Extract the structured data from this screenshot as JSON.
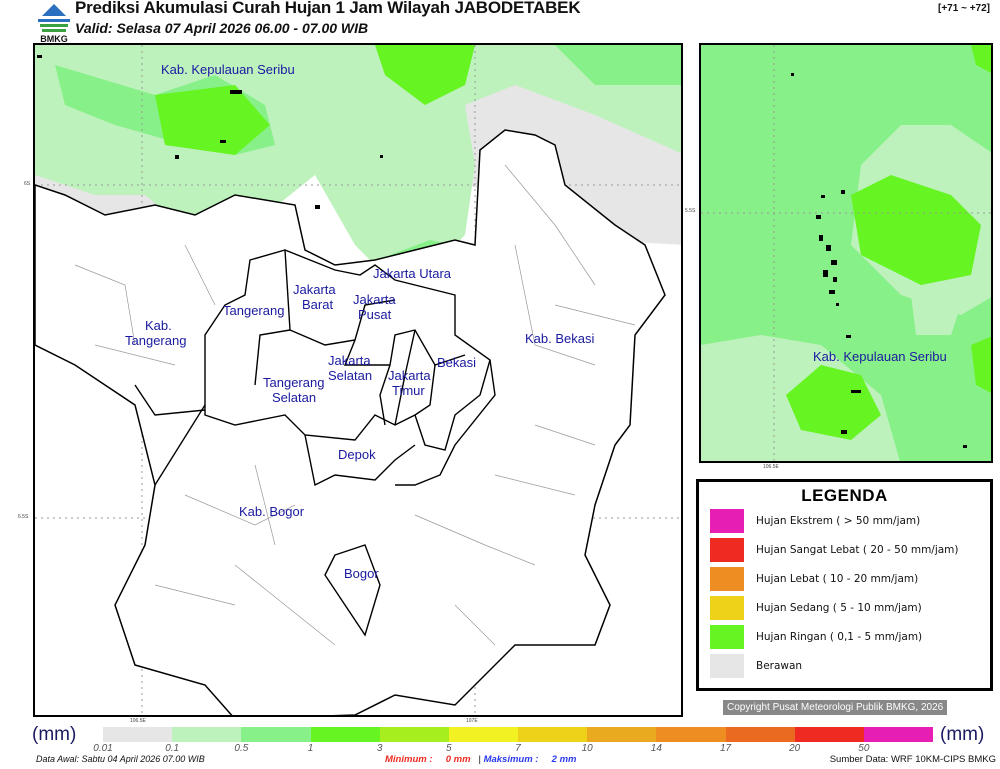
{
  "header": {
    "logo_text": "BMKG",
    "title": "Prediksi Akumulasi Curah Hujan 1 Jam Wilayah JABODETABEK",
    "valid": "Valid: Selasa 07 April 2026 06.00 - 07.00 WIB",
    "range": "[+71 ~ +72]"
  },
  "map": {
    "regions": {
      "kepulauan_seribu": "Kab. Kepulauan Seribu",
      "jakarta_utara": "Jakarta Utara",
      "jakarta_barat_1": "Jakarta",
      "jakarta_barat_2": "Barat",
      "jakarta_pusat_1": "Jakarta",
      "jakarta_pusat_2": "Pusat",
      "tangerang": "Tangerang",
      "kab_tangerang_1": "Kab.",
      "kab_tangerang_2": "Tangerang",
      "jakarta_selatan_1": "Jakarta",
      "jakarta_selatan_2": "Selatan",
      "jakarta_timur_1": "Jakarta",
      "jakarta_timur_2": "Timur",
      "bekasi": "Bekasi",
      "kab_bekasi": "Kab. Bekasi",
      "tangerang_selatan_1": "Tangerang",
      "tangerang_selatan_2": "Selatan",
      "depok": "Depok",
      "kab_bogor": "Kab. Bogor",
      "bogor": "Bogor"
    },
    "axis": {
      "lat1": "6S",
      "lat2": "6.5S",
      "lon1": "106.5E",
      "lon2": "107E"
    }
  },
  "inset": {
    "label": "Kab. Kepulauan Seribu",
    "axis": {
      "lat": "5.5S",
      "lon": "106.5E"
    }
  },
  "legend": {
    "title": "LEGENDA",
    "items": [
      {
        "label": "Hujan Ekstrem ( > 50 mm/jam)",
        "color": "#e61eb4"
      },
      {
        "label": "Hujan Sangat Lebat ( 20 - 50 mm/jam)",
        "color": "#ee2a22"
      },
      {
        "label": "Hujan Lebat ( 10 - 20 mm/jam)",
        "color": "#ee8e22"
      },
      {
        "label": "Hujan Sedang ( 5 - 10 mm/jam)",
        "color": "#eed21a"
      },
      {
        "label": "Hujan Ringan ( 0,1 - 5 mm/jam)",
        "color": "#66f422"
      },
      {
        "label": "Berawan",
        "color": "#e6e6e6"
      }
    ]
  },
  "copyright": "Copyright Pusat Meteorologi Publik BMKG, 2026",
  "colorbar": {
    "unit": "(mm)",
    "colors": [
      "#e6e6e6",
      "#bdf2bd",
      "#88f088",
      "#66f422",
      "#a6ee1e",
      "#f2f222",
      "#eed21a",
      "#eaaa20",
      "#ee8e22",
      "#ea6a22",
      "#ee2a22",
      "#e61eb4"
    ],
    "ticks": [
      "0.01",
      "0.1",
      "0.5",
      "1",
      "3",
      "5",
      "7",
      "10",
      "14",
      "17",
      "20",
      "50"
    ]
  },
  "footer": {
    "data_awal": "Data Awal: Sabtu 04 April 2026 07.00 WIB",
    "minimum_label": "Minimum :",
    "minimum_value": "0 mm",
    "separator": "|",
    "maksimum_label": "Maksimum :",
    "maksimum_value": "2 mm",
    "source": "Sumber Data: WRF 10KM-CIPS BMKG"
  }
}
